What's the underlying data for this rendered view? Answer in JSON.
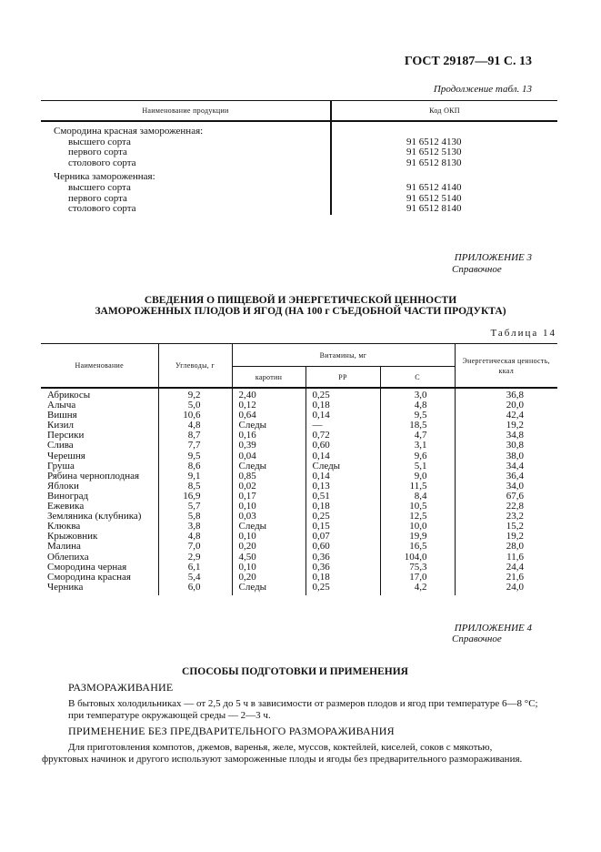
{
  "header": {
    "doc_ref": "ГОСТ 29187—91 С. 13"
  },
  "table13": {
    "caption": "Продолжение табл. 13",
    "columns": [
      "Наименование продукции",
      "Код ОКП"
    ],
    "groups": [
      {
        "name": "Смородина красная замороженная:",
        "items": [
          {
            "grade": "высшего сорта",
            "code": "91 6512 4130"
          },
          {
            "grade": "первого сорта",
            "code": "91 6512 5130"
          },
          {
            "grade": "столового сорта",
            "code": "91 6512 8130"
          }
        ]
      },
      {
        "name": "Черника замороженная:",
        "items": [
          {
            "grade": "высшего сорта",
            "code": "91 6512 4140"
          },
          {
            "grade": "первого сорта",
            "code": "91 6512 5140"
          },
          {
            "grade": "столового сорта",
            "code": "91 6512 8140"
          }
        ]
      }
    ]
  },
  "appendix3": {
    "label": "ПРИЛОЖЕНИЕ 3",
    "type": "Справочное",
    "title_line1": "СВЕДЕНИЯ О ПИЩЕВОЙ И ЭНЕРГЕТИЧЕСКОЙ ЦЕННОСТИ",
    "title_line2": "ЗАМОРОЖЕННЫХ ПЛОДОВ И ЯГОД (НА 100 г СЪЕДОБНОЙ ЧАСТИ ПРОДУКТА)"
  },
  "table14": {
    "caption": "Таблица 14",
    "col_name": "Наименование",
    "col_carbs": "Углеводы, г",
    "col_vitamins": "Витамины, мг",
    "col_carotene": "каротин",
    "col_pp": "PP",
    "col_c": "C",
    "col_energy": "Энергетическая ценность, ккал",
    "rows": [
      [
        "Абрикосы",
        "9,2",
        "2,40",
        "0,25",
        "3,0",
        "36,8"
      ],
      [
        "Алыча",
        "5,0",
        "0,12",
        "0,18",
        "4,8",
        "20,0"
      ],
      [
        "Вишня",
        "10,6",
        "0,64",
        "0,14",
        "9,5",
        "42,4"
      ],
      [
        "Кизил",
        "4,8",
        "Следы",
        "—",
        "18,5",
        "19,2"
      ],
      [
        "Персики",
        "8,7",
        "0,16",
        "0,72",
        "4,7",
        "34,8"
      ],
      [
        "Слива",
        "7,7",
        "0,39",
        "0,60",
        "3,1",
        "30,8"
      ],
      [
        "Черешня",
        "9,5",
        "0,04",
        "0,14",
        "9,6",
        "38,0"
      ],
      [
        "Груша",
        "8,6",
        "Следы",
        "Следы",
        "5,1",
        "34,4"
      ],
      [
        "Рябина черноплодная",
        "9,1",
        "0,85",
        "0,14",
        "9,0",
        "36,4"
      ],
      [
        "Яблоки",
        "8,5",
        "0,02",
        "0,13",
        "11,5",
        "34,0"
      ],
      [
        "Виноград",
        "16,9",
        "0,17",
        "0,51",
        "8,4",
        "67,6"
      ],
      [
        "Ежевика",
        "5,7",
        "0,10",
        "0,18",
        "10,5",
        "22,8"
      ],
      [
        "Земляника (клубника)",
        "5,8",
        "0,03",
        "0,25",
        "12,5",
        "23,2"
      ],
      [
        "Клюква",
        "3,8",
        "Следы",
        "0,15",
        "10,0",
        "15,2"
      ],
      [
        "Крыжовник",
        "4,8",
        "0,10",
        "0,07",
        "19,9",
        "19,2"
      ],
      [
        "Малина",
        "7,0",
        "0,20",
        "0,60",
        "16,5",
        "28,0"
      ],
      [
        "Облепиха",
        "2,9",
        "4,50",
        "0,36",
        "104,0",
        "11,6"
      ],
      [
        "Смородина черная",
        "6,1",
        "0,10",
        "0,36",
        "75,3",
        "24,4"
      ],
      [
        "Смородина красная",
        "5,4",
        "0,20",
        "0,18",
        "17,0",
        "21,6"
      ],
      [
        "Черника",
        "6,0",
        "Следы",
        "0,25",
        "4,2",
        "24,0"
      ]
    ]
  },
  "appendix4": {
    "label": "ПРИЛОЖЕНИЕ 4",
    "type": "Справочное",
    "title": "СПОСОБЫ ПОДГОТОВКИ И ПРИМЕНЕНИЯ",
    "section1_title": "РАЗМОРАЖИВАНИЕ",
    "section1_line1": "В бытовых холодильниках — от 2,5 до 5 ч в зависимости от размеров плодов и ягод при температуре 6—8 °С;",
    "section1_line2": "при температуре окружающей среды — 2—3 ч.",
    "section2_title": "ПРИМЕНЕНИЕ БЕЗ ПРЕДВАРИТЕЛЬНОГО РАЗМОРАЖИВАНИЯ",
    "section2_line1": "Для приготовления компотов, джемов, варенья, желе, муссов, коктейлей, киселей, соков с мякотью,",
    "section2_line2": "фруктовых начинок и другого используют замороженные плоды и ягоды без предварительного размораживания."
  }
}
